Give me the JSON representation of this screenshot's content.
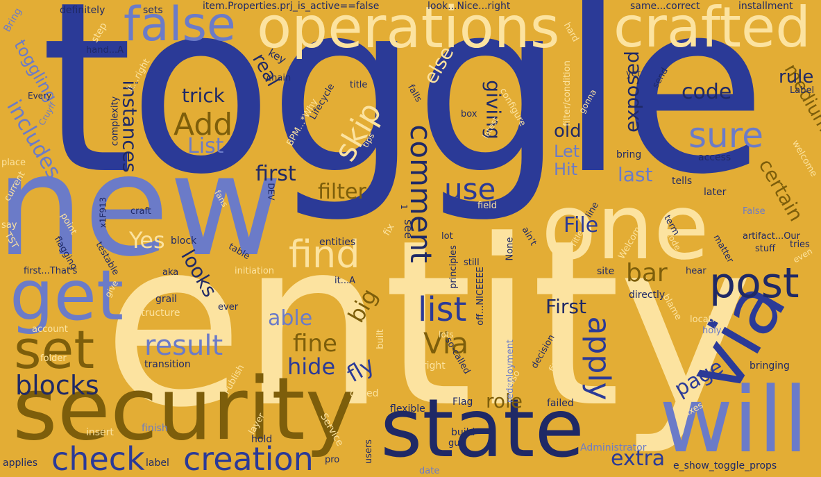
{
  "colors": {
    "background": "#E3AD35",
    "navy": "#2B3A97",
    "dark_navy": "#1F2966",
    "periwinkle": "#6B7BC8",
    "cream": "#FCE3A0",
    "olive": "#7D5E0B",
    "light_tan": "#F0C872"
  },
  "words": {
    "toggle": "toggle",
    "entity": "entity",
    "new": "new",
    "security": "security",
    "state": "state",
    "will": "will",
    "via": "via",
    "one": "one",
    "operations": "operations",
    "crafted": "crafted",
    "false_word": "false",
    "get": "get",
    "set": "set",
    "post": "post",
    "creation": "creation",
    "check": "check",
    "blocks": "blocks",
    "result": "result",
    "find": "find",
    "list": "list",
    "apply": "apply",
    "comment": "comment",
    "sure": "sure",
    "use": "use",
    "Add": "Add",
    "List": "List",
    "Via": "Via",
    "skip": "skip",
    "code": "code",
    "File": "File",
    "bar": "bar",
    "instances": "instances",
    "looks": "looks",
    "exposed": "exposed",
    "certain": "certain",
    "medium": "medium",
    "page": "page",
    "extra": "extra",
    "role": "role",
    "fine": "fine",
    "hide": "hide",
    "able": "able",
    "filter": "filter",
    "first": "first",
    "First": "First",
    "fly": "fly",
    "big": "big",
    "Yes": "Yes",
    "includes": "includes",
    "toggling": "toggling",
    "else": "else",
    "real": "real",
    "giving": "giving",
    "trick": "trick",
    "old": "old",
    "Let": "Let",
    "Hit": "Hit",
    "last": "last",
    "rule": "rule",
    "definitely": "definitely",
    "sets": "sets",
    "item_prop": "item.Properties.prj_is_active==false",
    "look_nice": "look...Nice...right",
    "same_correct": "same...correct",
    "installment": "installment",
    "Bring": "Bring",
    "step": "step",
    "hand_A": "hand...A",
    "key": "key",
    "hard": "hard",
    "it_right": "it...right",
    "Every": "Every",
    "Cruyff": "Cruyff",
    "complexity": "complexity",
    "chain": "chain",
    "BPM_Why": "BPM...*Why",
    "Lifecycle": "Lifecycle",
    "title": "title",
    "falls": "falls",
    "tips": "tips",
    "box": "box",
    "latest": "latest",
    "configure": "configure",
    "filter_condition": "filter/condition",
    "gonna": "gonna",
    "yet": "yet",
    "send": "send",
    "Label": "Label",
    "bring": "bring",
    "welcome": "welcome",
    "access": "access",
    "tells": "tells",
    "later": "later",
    "place": "place",
    "current": "current",
    "say": "say",
    "TST": "TST",
    "craft": "craft",
    "x1F913": "x1F913",
    "point": "point",
    "flagging": "flagging",
    "fans": "fans",
    "DEV": "DEV",
    "field": "field",
    "fix": "fix",
    "see": "see",
    "entities": "entities",
    "lot": "lot",
    "principles": "principles",
    "block": "block",
    "testable": "testable",
    "table": "table",
    "initiation": "initiation",
    "aka": "aka",
    "first_thats": "first...That's",
    "give": "give",
    "grail": "grail",
    "structure": "structure",
    "ever": "ever",
    "account": "account",
    "folder": "folder",
    "transition": "transition",
    "Publish": "Publish",
    "called": "called",
    "it_A": "it...A",
    "lots": "lots",
    "built": "built",
    "bright": "bright",
    "so_called": "so-called",
    "off_nice": "off...NICEEEE",
    "None": "None",
    "still": "still",
    "aint": "ain't",
    "Title": "Title",
    "line": "line",
    "Welcome": "Welcome",
    "site": "site",
    "directly": "directly",
    "red": "red",
    "blame": "blame",
    "holy": "holy",
    "location": "location",
    "hear": "hear",
    "term": "term",
    "code_exclaim": "code...!",
    "matter": "matter",
    "False": "False",
    "artifact_our": "artifact...Our",
    "stuff": "stuff",
    "tries": "tries",
    "even": "even",
    "redeployment": "redeployment",
    "decision": "decision",
    "fits": "fits",
    "Also": "Also",
    "failed": "failed",
    "fixes": "fixes",
    "bringing": "bringing",
    "Flag": "Flag",
    "flexible": "flexible",
    "layer": "layer",
    "hold": "hold",
    "Service": "Service",
    "build": "build",
    "guy": "guy",
    "users": "users",
    "pro": "pro",
    "date": "date",
    "Administrator": "Administrator",
    "e_show": "e_show_toggle_props",
    "finish": "finish",
    "insert": "insert",
    "applies": "applies",
    "label": "label",
    "one_sym": "1"
  }
}
